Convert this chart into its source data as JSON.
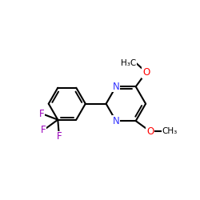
{
  "background": "#ffffff",
  "bond_color": "#000000",
  "bond_width": 1.5,
  "N_color": "#3333ff",
  "O_color": "#ff0000",
  "F_color": "#9900bb",
  "C_color": "#000000",
  "font_size_atom": 8.5,
  "font_size_methyl": 7.5,
  "xlim": [
    -2.8,
    2.8
  ],
  "ylim": [
    -2.8,
    2.8
  ]
}
